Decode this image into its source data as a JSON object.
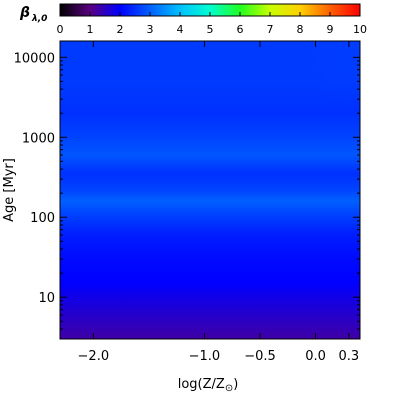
{
  "chart_data": {
    "type": "heatmap",
    "colorbar": {
      "label_main": "β",
      "label_sub": "λ,0",
      "ticks": [
        "0",
        "1",
        "2",
        "3",
        "4",
        "5",
        "6",
        "7",
        "8",
        "9",
        "10"
      ],
      "range": [
        0,
        10
      ],
      "colors": [
        "#000000",
        "#5a0080",
        "#0000ff",
        "#0060ff",
        "#00c0ff",
        "#00ffd0",
        "#20ff20",
        "#c8ff00",
        "#ffd000",
        "#ff6000",
        "#ff0000"
      ]
    },
    "x": {
      "label": "log(Z/Z",
      "label_sun": "⊙",
      "label_close": ")",
      "ticks": [
        "−2.0",
        "−1.0",
        "−0.5",
        "0.0",
        "0.3"
      ],
      "tick_values": [
        -2.0,
        -1.0,
        -0.5,
        0.0,
        0.3
      ],
      "range": [
        -2.3,
        0.4
      ]
    },
    "y": {
      "label": "Age [Myr]",
      "scale": "log",
      "ticks": [
        "10",
        "100",
        "1000",
        "10000"
      ],
      "tick_values": [
        10,
        100,
        1000,
        10000
      ],
      "range": [
        3,
        16000
      ]
    },
    "grid": false,
    "rows": [
      {
        "age": 3,
        "value": 1.3
      },
      {
        "age": 6,
        "value": 1.6
      },
      {
        "age": 15,
        "value": 2.0
      },
      {
        "age": 30,
        "value": 2.1
      },
      {
        "age": 60,
        "value": 2.3
      },
      {
        "age": 110,
        "value": 2.7
      },
      {
        "age": 160,
        "value": 3.0
      },
      {
        "age": 220,
        "value": 2.7
      },
      {
        "age": 350,
        "value": 2.5
      },
      {
        "age": 600,
        "value": 2.9
      },
      {
        "age": 1000,
        "value": 2.7
      },
      {
        "age": 2000,
        "value": 2.5
      },
      {
        "age": 5000,
        "value": 2.6
      },
      {
        "age": 16000,
        "value": 2.6
      }
    ]
  }
}
